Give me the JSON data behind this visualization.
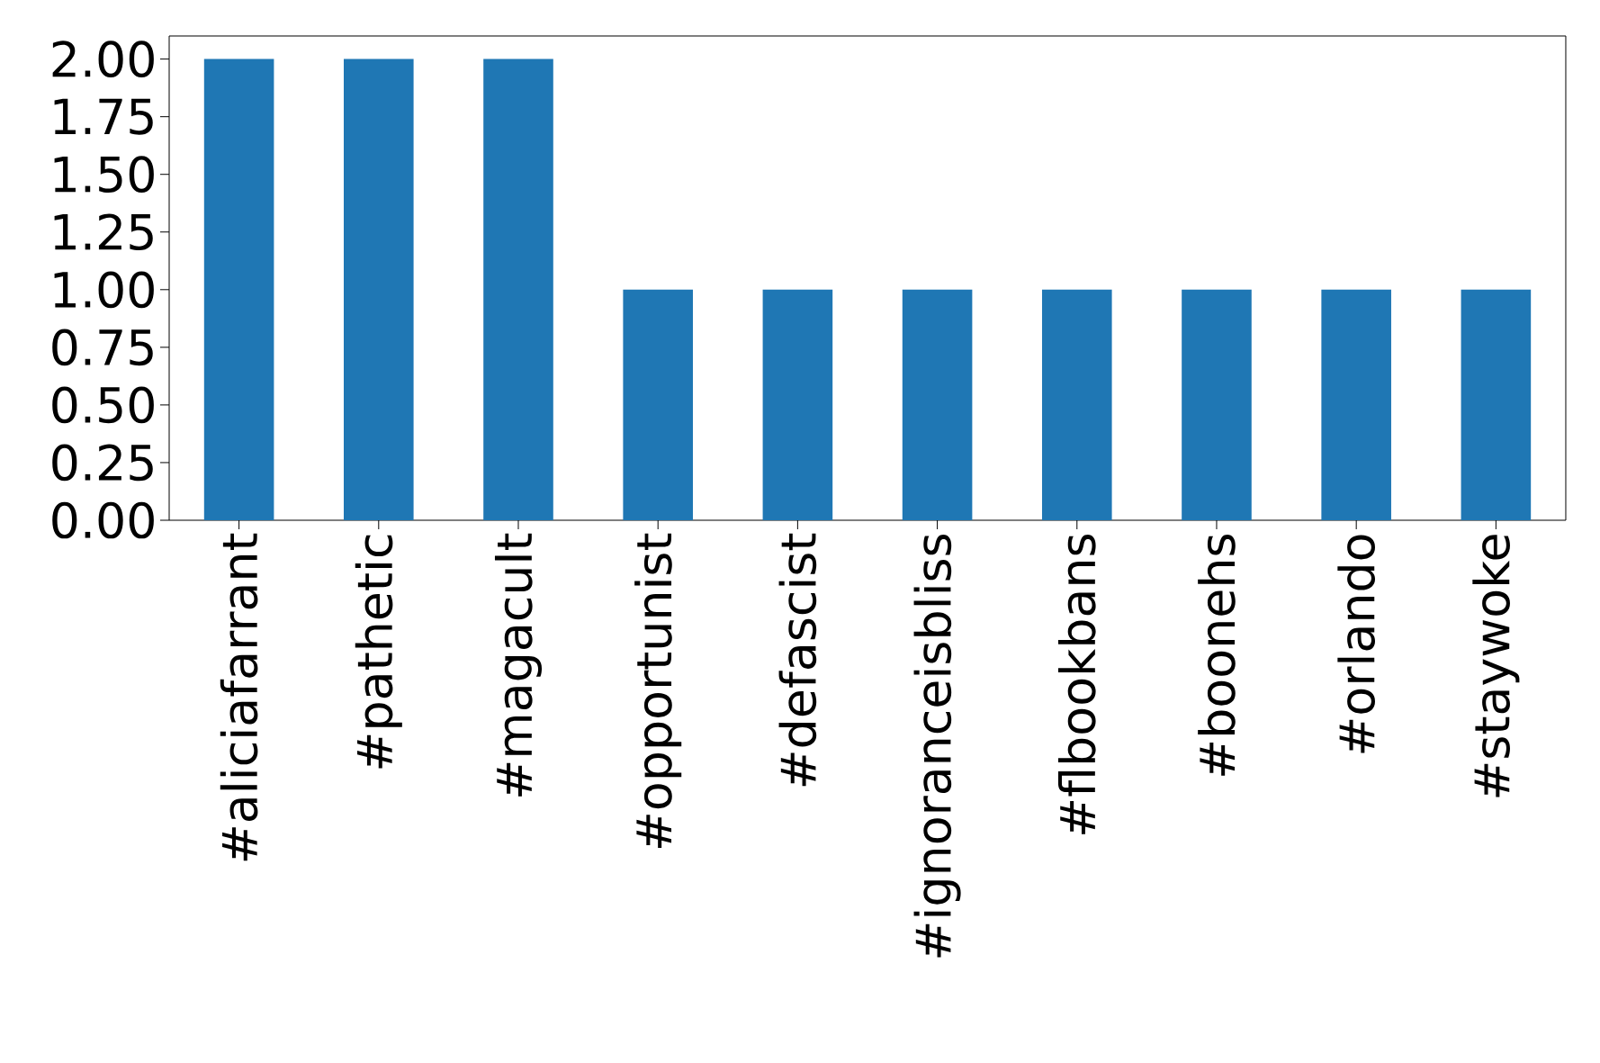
{
  "chart_data": {
    "type": "bar",
    "categories": [
      "#aliciafarrant",
      "#pathetic",
      "#magacult",
      "#opportunist",
      "#defascist",
      "#ignoranceisbliss",
      "#flbookbans",
      "#boonehs",
      "#orlando",
      "#staywoke"
    ],
    "values": [
      2,
      2,
      2,
      1,
      1,
      1,
      1,
      1,
      1,
      1
    ],
    "color": "#1f77b4",
    "ylim": [
      0,
      2.1
    ],
    "yticks": [
      {
        "value": 0,
        "label": "0.00"
      },
      {
        "value": 0.25,
        "label": "0.25"
      },
      {
        "value": 0.5,
        "label": "0.50"
      },
      {
        "value": 0.75,
        "label": "0.75"
      },
      {
        "value": 1,
        "label": "1.00"
      },
      {
        "value": 1.25,
        "label": "1.25"
      },
      {
        "value": 1.5,
        "label": "1.50"
      },
      {
        "value": 1.75,
        "label": "1.75"
      },
      {
        "value": 2,
        "label": "2.00"
      }
    ]
  }
}
